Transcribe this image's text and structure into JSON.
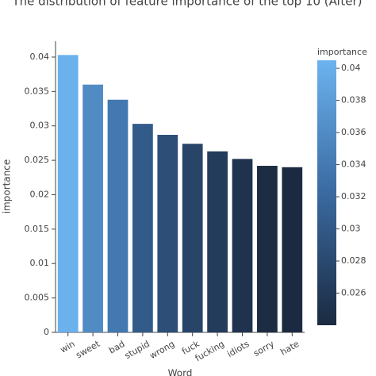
{
  "chart_data": {
    "type": "bar",
    "title": "The distribution of feature importance of the top 10 (After)",
    "x_label": "Word",
    "y_label": "importance",
    "categories": [
      "win",
      "sweet",
      "bad",
      "stupid",
      "wrong",
      "fuck",
      "fucking",
      "idiots",
      "sorry",
      "hate"
    ],
    "values": [
      0.0403,
      0.036,
      0.0338,
      0.0303,
      0.0287,
      0.0274,
      0.0263,
      0.0252,
      0.0242,
      0.024
    ],
    "ylim": [
      0,
      0.0423
    ],
    "yticks": [
      0,
      0.005,
      0.01,
      0.015,
      0.02,
      0.025,
      0.03,
      0.035,
      0.04
    ],
    "colorbar": {
      "title": "importance",
      "clim": [
        0.024,
        0.0405
      ],
      "ticks": [
        0.026,
        0.028,
        0.03,
        0.032,
        0.034,
        0.036,
        0.038,
        0.04
      ],
      "colorscale": [
        [
          0,
          "#1b2a40"
        ],
        [
          0.5,
          "#3a6aa1"
        ],
        [
          1,
          "#6cb3ef"
        ]
      ]
    }
  }
}
